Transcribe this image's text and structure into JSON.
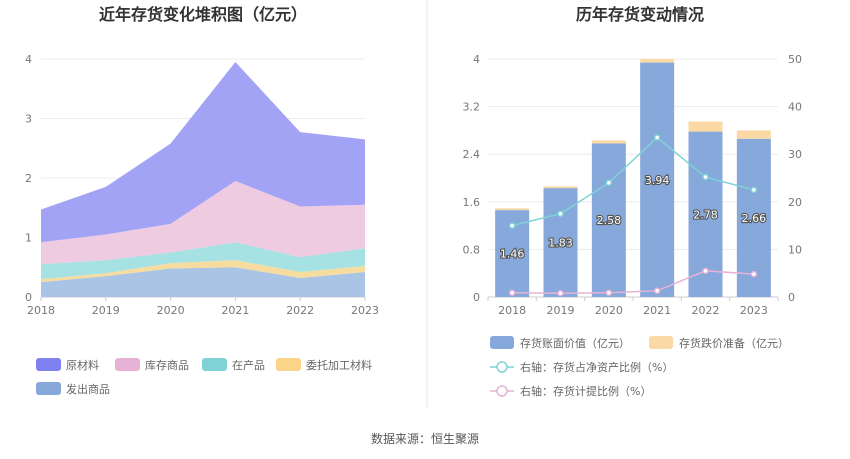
{
  "source_label": "数据来源：恒生聚源",
  "chart_data": [
    {
      "type": "area",
      "stacked": true,
      "title": "近年存货变化堆积图（亿元）",
      "x": [
        "2018",
        "2019",
        "2020",
        "2021",
        "2022",
        "2023"
      ],
      "ylim": [
        0,
        4
      ],
      "yticks": [
        "0",
        "1",
        "2",
        "3",
        "4"
      ],
      "series": [
        {
          "name": "发出商品",
          "color": "#aac4e5",
          "values": [
            0.25,
            0.35,
            0.48,
            0.5,
            0.32,
            0.42
          ]
        },
        {
          "name": "委托加工材料",
          "color": "#f7dca0",
          "values": [
            0.05,
            0.05,
            0.09,
            0.12,
            0.1,
            0.1
          ]
        },
        {
          "name": "在产品",
          "color": "#a6e1e3",
          "values": [
            0.25,
            0.22,
            0.18,
            0.3,
            0.25,
            0.3
          ]
        },
        {
          "name": "库存商品",
          "color": "#efcbe2",
          "values": [
            0.37,
            0.43,
            0.48,
            1.03,
            0.85,
            0.73
          ]
        },
        {
          "name": "原材料",
          "color": "#a3a3f5",
          "values": [
            0.55,
            0.8,
            1.35,
            2.0,
            1.25,
            1.1
          ]
        }
      ],
      "legend": [
        {
          "name": "原材料",
          "color": "#8081f0"
        },
        {
          "name": "库存商品",
          "color": "#e6b3d6"
        },
        {
          "name": "在产品",
          "color": "#7fd3d6"
        },
        {
          "name": "委托加工材料",
          "color": "#fbd48a"
        },
        {
          "name": "发出商品",
          "color": "#86a8da"
        }
      ]
    },
    {
      "type": "bar",
      "title": "历年存货变动情况",
      "categories": [
        "2018",
        "2019",
        "2020",
        "2021",
        "2022",
        "2023"
      ],
      "ylim": [
        0,
        4
      ],
      "yticks": [
        "0",
        "0.8",
        "1.6",
        "2.4",
        "3.2",
        "4"
      ],
      "y2lim": [
        0,
        50
      ],
      "y2ticks": [
        "0",
        "10",
        "20",
        "30",
        "40",
        "50"
      ],
      "bar_series": [
        {
          "name": "存货账面价值（亿元）",
          "color": "#86a8da",
          "values": [
            1.46,
            1.83,
            2.58,
            3.94,
            2.78,
            2.66
          ]
        },
        {
          "name": "存货跌价准备（亿元）",
          "color": "#fbd9a5",
          "values": [
            0.03,
            0.03,
            0.05,
            0.06,
            0.17,
            0.14
          ]
        }
      ],
      "data_labels": [
        "1.46",
        "1.83",
        "2.58",
        "3.94",
        "2.78",
        "2.66"
      ],
      "line_series": [
        {
          "name": "右轴：存货占净资产比例（%）",
          "color": "#7fd3d6",
          "values": [
            15,
            17.5,
            24,
            33.5,
            25.2,
            22.5
          ]
        },
        {
          "name": "右轴：存货计提比例（%）",
          "color": "#e6b3d6",
          "values": [
            0.9,
            0.8,
            0.9,
            1.3,
            5.5,
            4.8
          ]
        }
      ]
    }
  ]
}
